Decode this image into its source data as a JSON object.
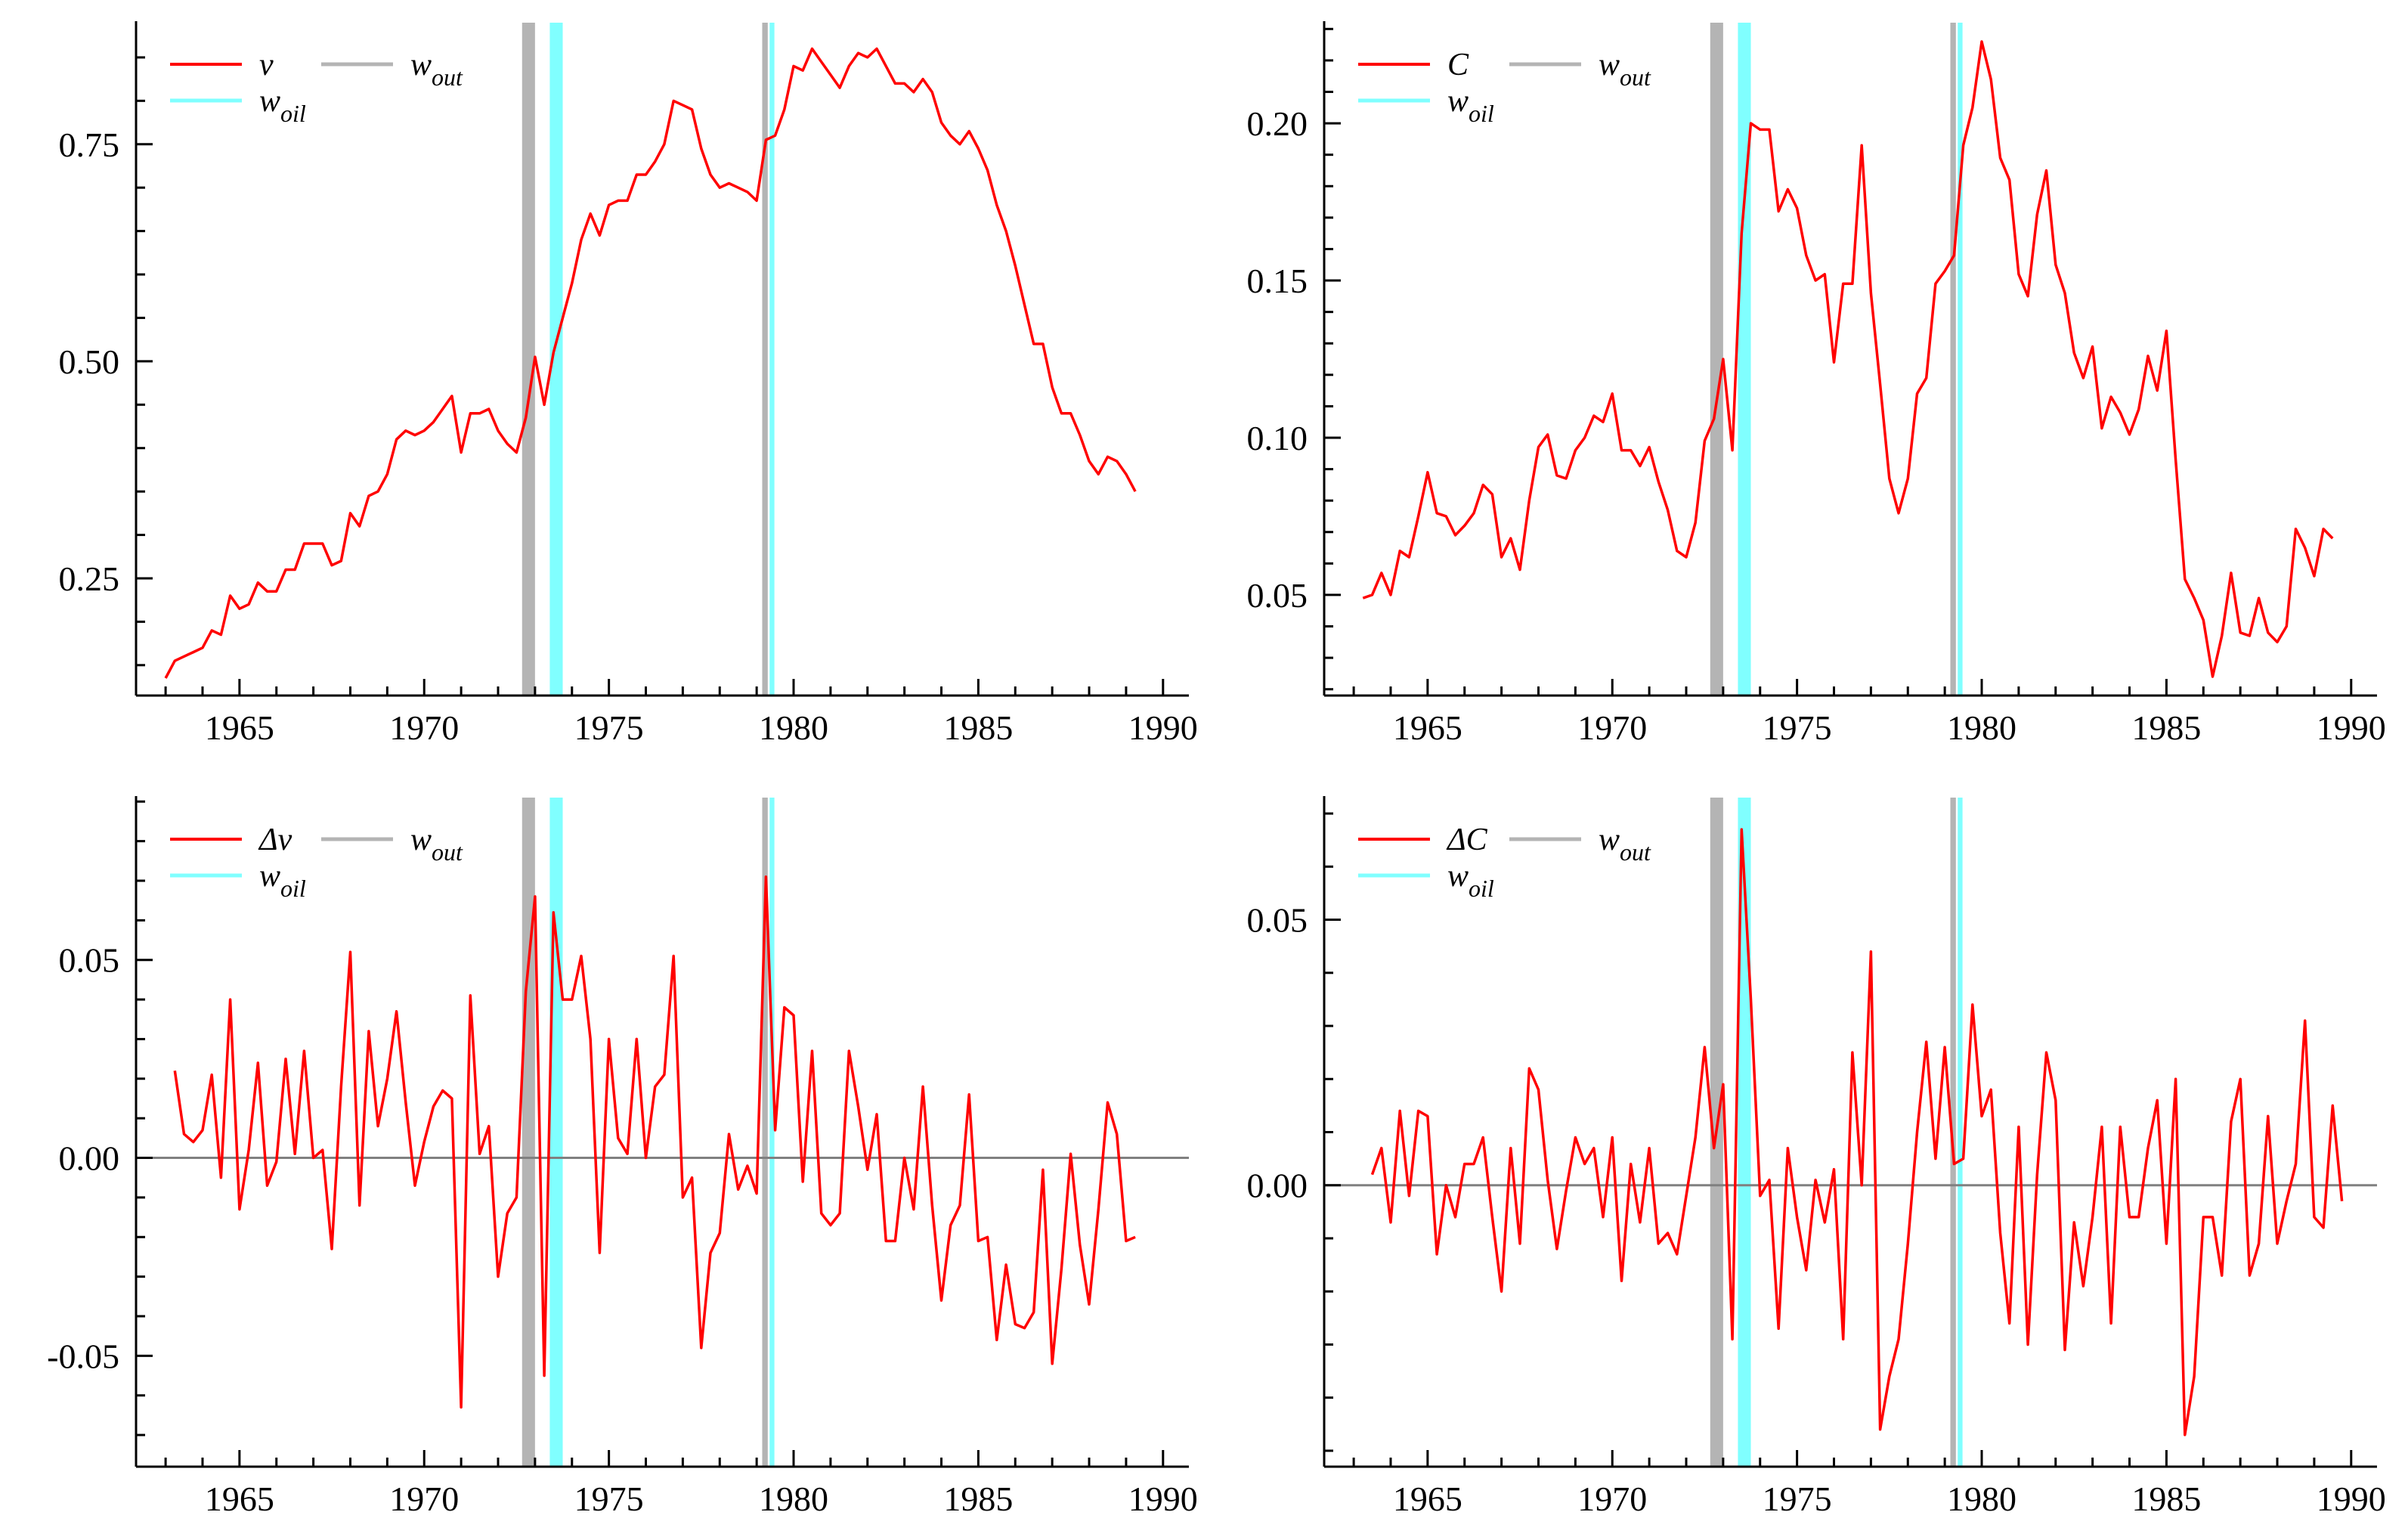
{
  "colors": {
    "series": "#ff0000",
    "outlier_band": "#b4b4b4",
    "oil_band": "#80ffff",
    "zero_line": "#808080",
    "axis": "#000000"
  },
  "chart_data": [
    {
      "id": "panel_v",
      "type": "line",
      "xlim": [
        1962.2,
        1990.7
      ],
      "ylim": [
        0.115,
        0.89
      ],
      "xticks": [
        1965,
        1970,
        1975,
        1980,
        1985,
        1990
      ],
      "xtick_labels": [
        "1965",
        "1970",
        "1975",
        "1980",
        "1985",
        "1990"
      ],
      "yticks": [
        0.25,
        0.5,
        0.75
      ],
      "ytick_labels": [
        "0.25",
        "0.50",
        "0.75"
      ],
      "zero_line": false,
      "legend": {
        "series": {
          "main": "v",
          "sub": ""
        },
        "out": {
          "main": "w",
          "sub": "out"
        },
        "oil": {
          "main": "w",
          "sub": "oil"
        }
      },
      "bands": [
        {
          "kind": "out",
          "x0": 1972.65,
          "x1": 1973.0
        },
        {
          "kind": "oil",
          "x0": 1973.4,
          "x1": 1973.75
        },
        {
          "kind": "out",
          "x0": 1979.15,
          "x1": 1979.3
        },
        {
          "kind": "oil",
          "x0": 1979.35,
          "x1": 1979.48
        }
      ],
      "x_start": 1963.0,
      "x_step": 0.25,
      "values": [
        0.135,
        0.155,
        0.16,
        0.165,
        0.17,
        0.19,
        0.185,
        0.23,
        0.215,
        0.22,
        0.245,
        0.235,
        0.235,
        0.26,
        0.26,
        0.29,
        0.29,
        0.29,
        0.265,
        0.27,
        0.325,
        0.31,
        0.345,
        0.35,
        0.37,
        0.41,
        0.42,
        0.415,
        0.42,
        0.43,
        0.445,
        0.46,
        0.395,
        0.44,
        0.44,
        0.445,
        0.42,
        0.405,
        0.395,
        0.435,
        0.505,
        0.45,
        0.51,
        0.55,
        0.59,
        0.64,
        0.67,
        0.645,
        0.68,
        0.685,
        0.685,
        0.715,
        0.715,
        0.73,
        0.75,
        0.8,
        0.795,
        0.79,
        0.745,
        0.715,
        0.7,
        0.705,
        0.7,
        0.695,
        0.685,
        0.755,
        0.76,
        0.79,
        0.84,
        0.835,
        0.86,
        0.845,
        0.83,
        0.815,
        0.84,
        0.855,
        0.85,
        0.86,
        0.84,
        0.82,
        0.82,
        0.81,
        0.825,
        0.81,
        0.775,
        0.76,
        0.75,
        0.765,
        0.745,
        0.72,
        0.68,
        0.65,
        0.61,
        0.565,
        0.52,
        0.52,
        0.47,
        0.44,
        0.44,
        0.415,
        0.385,
        0.37,
        0.39,
        0.385,
        0.37,
        0.35
      ]
    },
    {
      "id": "panel_C",
      "type": "line",
      "xlim": [
        1962.2,
        1990.7
      ],
      "ylim": [
        0.018,
        0.232
      ],
      "xticks": [
        1965,
        1970,
        1975,
        1980,
        1985,
        1990
      ],
      "xtick_labels": [
        "1965",
        "1970",
        "1975",
        "1980",
        "1985",
        "1990"
      ],
      "yticks": [
        0.05,
        0.1,
        0.15,
        0.2
      ],
      "ytick_labels": [
        "0.05",
        "0.10",
        "0.15",
        "0.20"
      ],
      "zero_line": false,
      "legend": {
        "series": {
          "main": "C",
          "sub": ""
        },
        "out": {
          "main": "w",
          "sub": "out"
        },
        "oil": {
          "main": "w",
          "sub": "oil"
        }
      },
      "bands": [
        {
          "kind": "out",
          "x0": 1972.65,
          "x1": 1973.0
        },
        {
          "kind": "oil",
          "x0": 1973.4,
          "x1": 1973.75
        },
        {
          "kind": "out",
          "x0": 1979.15,
          "x1": 1979.3
        },
        {
          "kind": "oil",
          "x0": 1979.35,
          "x1": 1979.48
        }
      ],
      "x_start": 1963.25,
      "x_step": 0.25,
      "values": [
        0.049,
        0.05,
        0.057,
        0.05,
        0.064,
        0.062,
        0.075,
        0.089,
        0.076,
        0.075,
        0.069,
        0.072,
        0.076,
        0.085,
        0.082,
        0.062,
        0.068,
        0.058,
        0.08,
        0.097,
        0.101,
        0.088,
        0.087,
        0.096,
        0.1,
        0.107,
        0.105,
        0.114,
        0.096,
        0.096,
        0.091,
        0.097,
        0.086,
        0.077,
        0.064,
        0.062,
        0.073,
        0.099,
        0.106,
        0.125,
        0.096,
        0.165,
        0.2,
        0.198,
        0.198,
        0.172,
        0.179,
        0.173,
        0.158,
        0.15,
        0.152,
        0.124,
        0.149,
        0.149,
        0.193,
        0.146,
        0.117,
        0.087,
        0.076,
        0.087,
        0.114,
        0.119,
        0.149,
        0.153,
        0.158,
        0.193,
        0.205,
        0.226,
        0.214,
        0.189,
        0.182,
        0.152,
        0.145,
        0.171,
        0.185,
        0.155,
        0.146,
        0.127,
        0.119,
        0.129,
        0.103,
        0.113,
        0.108,
        0.101,
        0.109,
        0.126,
        0.115,
        0.134,
        0.093,
        0.055,
        0.049,
        0.042,
        0.024,
        0.037,
        0.057,
        0.038,
        0.037,
        0.049,
        0.038,
        0.035,
        0.04,
        0.071,
        0.065,
        0.056,
        0.071,
        0.068
      ]
    },
    {
      "id": "panel_dv",
      "type": "line",
      "xlim": [
        1962.2,
        1990.7
      ],
      "ylim": [
        -0.078,
        0.091
      ],
      "xticks": [
        1965,
        1970,
        1975,
        1980,
        1985,
        1990
      ],
      "xtick_labels": [
        "1965",
        "1970",
        "1975",
        "1980",
        "1985",
        "1990"
      ],
      "yticks": [
        -0.05,
        0.0,
        0.05
      ],
      "ytick_labels": [
        "-0.05",
        "0.00",
        "0.05"
      ],
      "zero_line": true,
      "legend": {
        "series": {
          "main": "Δv",
          "sub": ""
        },
        "out": {
          "main": "w",
          "sub": "out"
        },
        "oil": {
          "main": "w",
          "sub": "oil"
        }
      },
      "bands": [
        {
          "kind": "out",
          "x0": 1972.65,
          "x1": 1973.0
        },
        {
          "kind": "oil",
          "x0": 1973.4,
          "x1": 1973.75
        },
        {
          "kind": "out",
          "x0": 1979.15,
          "x1": 1979.3
        },
        {
          "kind": "oil",
          "x0": 1979.35,
          "x1": 1979.48
        }
      ],
      "x_start": 1963.25,
      "x_step": 0.25,
      "values": [
        0.022,
        0.006,
        0.004,
        0.007,
        0.021,
        -0.005,
        0.04,
        -0.013,
        0.002,
        0.024,
        -0.007,
        -0.001,
        0.025,
        0.001,
        0.027,
        0.0,
        0.002,
        -0.023,
        0.018,
        0.052,
        -0.012,
        0.032,
        0.008,
        0.02,
        0.037,
        0.014,
        -0.007,
        0.004,
        0.013,
        0.017,
        0.015,
        -0.063,
        0.041,
        0.001,
        0.008,
        -0.03,
        -0.014,
        -0.01,
        0.042,
        0.066,
        -0.055,
        0.062,
        0.04,
        0.04,
        0.051,
        0.03,
        -0.024,
        0.03,
        0.005,
        0.001,
        0.03,
        0.0,
        0.018,
        0.021,
        0.051,
        -0.01,
        -0.005,
        -0.048,
        -0.024,
        -0.019,
        0.006,
        -0.008,
        -0.002,
        -0.009,
        0.071,
        0.007,
        0.038,
        0.036,
        -0.006,
        0.027,
        -0.014,
        -0.017,
        -0.014,
        0.027,
        0.013,
        -0.003,
        0.011,
        -0.021,
        -0.021,
        0.0,
        -0.013,
        0.018,
        -0.012,
        -0.036,
        -0.017,
        -0.012,
        0.016,
        -0.021,
        -0.02,
        -0.046,
        -0.027,
        -0.042,
        -0.043,
        -0.039,
        -0.003,
        -0.052,
        -0.028,
        0.001,
        -0.022,
        -0.037,
        -0.013,
        0.014,
        0.006,
        -0.021,
        -0.02
      ]
    },
    {
      "id": "panel_dC",
      "type": "line",
      "xlim": [
        1962.2,
        1990.7
      ],
      "ylim": [
        -0.053,
        0.073
      ],
      "xticks": [
        1965,
        1970,
        1975,
        1980,
        1985,
        1990
      ],
      "xtick_labels": [
        "1965",
        "1970",
        "1975",
        "1980",
        "1985",
        "1990"
      ],
      "yticks": [
        0.0,
        0.05
      ],
      "ytick_labels": [
        "0.00",
        "0.05"
      ],
      "zero_line": true,
      "legend": {
        "series": {
          "main": "ΔC",
          "sub": ""
        },
        "out": {
          "main": "w",
          "sub": "out"
        },
        "oil": {
          "main": "w",
          "sub": "oil"
        }
      },
      "bands": [
        {
          "kind": "out",
          "x0": 1972.65,
          "x1": 1973.0
        },
        {
          "kind": "oil",
          "x0": 1973.4,
          "x1": 1973.75
        },
        {
          "kind": "out",
          "x0": 1979.15,
          "x1": 1979.3
        },
        {
          "kind": "oil",
          "x0": 1979.35,
          "x1": 1979.48
        }
      ],
      "x_start": 1963.5,
      "x_step": 0.25,
      "values": [
        0.002,
        0.007,
        -0.007,
        0.014,
        -0.002,
        0.014,
        0.013,
        -0.013,
        0.0,
        -0.006,
        0.004,
        0.004,
        0.009,
        -0.006,
        -0.02,
        0.007,
        -0.011,
        0.022,
        0.018,
        0.001,
        -0.012,
        -0.001,
        0.009,
        0.004,
        0.007,
        -0.006,
        0.009,
        -0.018,
        0.004,
        -0.007,
        0.007,
        -0.011,
        -0.009,
        -0.013,
        -0.002,
        0.009,
        0.026,
        0.007,
        0.019,
        -0.029,
        0.067,
        0.035,
        -0.002,
        0.001,
        -0.027,
        0.007,
        -0.006,
        -0.016,
        0.001,
        -0.007,
        0.003,
        -0.029,
        0.025,
        0.0,
        0.044,
        -0.046,
        -0.036,
        -0.029,
        -0.011,
        0.01,
        0.027,
        0.005,
        0.026,
        0.004,
        0.005,
        0.034,
        0.013,
        0.018,
        -0.009,
        -0.026,
        0.011,
        -0.03,
        0.002,
        0.025,
        0.016,
        -0.031,
        -0.007,
        -0.019,
        -0.006,
        0.011,
        -0.026,
        0.011,
        -0.006,
        -0.006,
        0.007,
        0.016,
        -0.011,
        0.02,
        -0.047,
        -0.036,
        -0.006,
        -0.006,
        -0.017,
        0.012,
        0.02,
        -0.017,
        -0.011,
        0.013,
        -0.011,
        -0.003,
        0.004,
        0.031,
        -0.006,
        -0.008,
        0.015,
        -0.003
      ]
    }
  ]
}
